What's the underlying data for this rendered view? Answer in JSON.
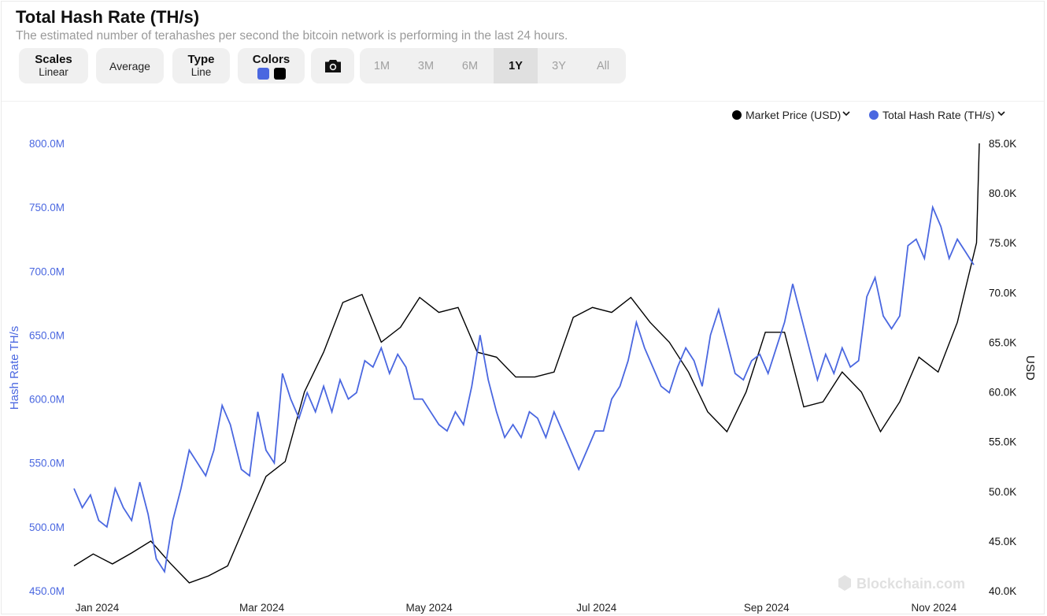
{
  "header": {
    "title": "Total Hash Rate (TH/s)",
    "subtitle": "The estimated number of terahashes per second the bitcoin network is performing in the last 24 hours."
  },
  "toolbar": {
    "scales_key": "Scales",
    "scales_value": "Linear",
    "average_label": "Average",
    "type_key": "Type",
    "type_value": "Line",
    "colors_key": "Colors",
    "color_swatches": [
      "#4a67e0",
      "#000000"
    ],
    "camera_icon": "camera-icon",
    "ranges": [
      "1M",
      "3M",
      "6M",
      "1Y",
      "3Y",
      "All"
    ],
    "active_range": "1Y"
  },
  "colors": {
    "hashrate": "#4a67e0",
    "price": "#000000",
    "accent_axis": "#4a67e0"
  },
  "watermark": "Blockchain.com",
  "chart_data": {
    "type": "line",
    "title": "Total Hash Rate (TH/s)",
    "x_tick_labels": [
      "Jan 2024",
      "Mar 2024",
      "May 2024",
      "Jul 2024",
      "Sep 2024",
      "Nov 2024"
    ],
    "xlim": [
      "2023-12-31",
      "2024-11-25"
    ],
    "y_left": {
      "label": "Hash Rate TH/s",
      "range": [
        450000000,
        800000000
      ],
      "tick_labels": [
        "450.0M",
        "500.0M",
        "550.0M",
        "600.0M",
        "650.0M",
        "700.0M",
        "750.0M",
        "800.0M"
      ]
    },
    "y_right": {
      "label": "USD",
      "range": [
        40000,
        85000
      ],
      "tick_labels": [
        "40.0K",
        "45.0K",
        "50.0K",
        "55.0K",
        "60.0K",
        "65.0K",
        "70.0K",
        "75.0K",
        "80.0K",
        "85.0K"
      ]
    },
    "legend": [
      "Market Price (USD)",
      "Total Hash Rate (TH/s)"
    ],
    "legend_position": "top-right",
    "series": [
      {
        "name": "Total Hash Rate (TH/s)",
        "axis": "left",
        "color": "#4a67e0",
        "points": [
          [
            "2023-12-31",
            530
          ],
          [
            "2024-01-03",
            515
          ],
          [
            "2024-01-06",
            525
          ],
          [
            "2024-01-09",
            505
          ],
          [
            "2024-01-12",
            500
          ],
          [
            "2024-01-15",
            530
          ],
          [
            "2024-01-18",
            515
          ],
          [
            "2024-01-21",
            505
          ],
          [
            "2024-01-24",
            535
          ],
          [
            "2024-01-27",
            510
          ],
          [
            "2024-01-30",
            475
          ],
          [
            "2024-02-02",
            465
          ],
          [
            "2024-02-05",
            505
          ],
          [
            "2024-02-08",
            530
          ],
          [
            "2024-02-11",
            560
          ],
          [
            "2024-02-14",
            550
          ],
          [
            "2024-02-17",
            540
          ],
          [
            "2024-02-20",
            560
          ],
          [
            "2024-02-23",
            595
          ],
          [
            "2024-02-26",
            580
          ],
          [
            "2024-03-01",
            545
          ],
          [
            "2024-03-04",
            540
          ],
          [
            "2024-03-07",
            590
          ],
          [
            "2024-03-10",
            560
          ],
          [
            "2024-03-13",
            550
          ],
          [
            "2024-03-16",
            620
          ],
          [
            "2024-03-19",
            600
          ],
          [
            "2024-03-22",
            585
          ],
          [
            "2024-03-25",
            605
          ],
          [
            "2024-03-28",
            590
          ],
          [
            "2024-03-31",
            610
          ],
          [
            "2024-04-03",
            590
          ],
          [
            "2024-04-06",
            615
          ],
          [
            "2024-04-09",
            600
          ],
          [
            "2024-04-12",
            605
          ],
          [
            "2024-04-15",
            630
          ],
          [
            "2024-04-18",
            625
          ],
          [
            "2024-04-21",
            640
          ],
          [
            "2024-04-24",
            620
          ],
          [
            "2024-04-27",
            635
          ],
          [
            "2024-04-30",
            625
          ],
          [
            "2024-05-03",
            600
          ],
          [
            "2024-05-06",
            600
          ],
          [
            "2024-05-09",
            590
          ],
          [
            "2024-05-12",
            580
          ],
          [
            "2024-05-15",
            575
          ],
          [
            "2024-05-18",
            590
          ],
          [
            "2024-05-21",
            580
          ],
          [
            "2024-05-24",
            610
          ],
          [
            "2024-05-27",
            650
          ],
          [
            "2024-05-30",
            615
          ],
          [
            "2024-06-02",
            590
          ],
          [
            "2024-06-05",
            570
          ],
          [
            "2024-06-08",
            580
          ],
          [
            "2024-06-11",
            570
          ],
          [
            "2024-06-14",
            590
          ],
          [
            "2024-06-17",
            585
          ],
          [
            "2024-06-20",
            570
          ],
          [
            "2024-06-23",
            590
          ],
          [
            "2024-06-26",
            575
          ],
          [
            "2024-06-29",
            560
          ],
          [
            "2024-07-02",
            545
          ],
          [
            "2024-07-05",
            560
          ],
          [
            "2024-07-08",
            575
          ],
          [
            "2024-07-11",
            575
          ],
          [
            "2024-07-14",
            600
          ],
          [
            "2024-07-17",
            610
          ],
          [
            "2024-07-20",
            630
          ],
          [
            "2024-07-23",
            660
          ],
          [
            "2024-07-26",
            640
          ],
          [
            "2024-07-29",
            625
          ],
          [
            "2024-08-01",
            610
          ],
          [
            "2024-08-04",
            605
          ],
          [
            "2024-08-07",
            625
          ],
          [
            "2024-08-10",
            640
          ],
          [
            "2024-08-13",
            630
          ],
          [
            "2024-08-16",
            610
          ],
          [
            "2024-08-19",
            650
          ],
          [
            "2024-08-22",
            670
          ],
          [
            "2024-08-25",
            645
          ],
          [
            "2024-08-28",
            620
          ],
          [
            "2024-08-31",
            615
          ],
          [
            "2024-09-03",
            630
          ],
          [
            "2024-09-06",
            635
          ],
          [
            "2024-09-09",
            620
          ],
          [
            "2024-09-12",
            640
          ],
          [
            "2024-09-15",
            660
          ],
          [
            "2024-09-18",
            690
          ],
          [
            "2024-09-21",
            665
          ],
          [
            "2024-09-24",
            640
          ],
          [
            "2024-09-27",
            615
          ],
          [
            "2024-09-30",
            635
          ],
          [
            "2024-10-03",
            620
          ],
          [
            "2024-10-06",
            640
          ],
          [
            "2024-10-09",
            625
          ],
          [
            "2024-10-12",
            630
          ],
          [
            "2024-10-15",
            680
          ],
          [
            "2024-10-18",
            695
          ],
          [
            "2024-10-21",
            665
          ],
          [
            "2024-10-24",
            655
          ],
          [
            "2024-10-27",
            665
          ],
          [
            "2024-10-30",
            720
          ],
          [
            "2024-11-02",
            725
          ],
          [
            "2024-11-05",
            710
          ],
          [
            "2024-11-08",
            750
          ],
          [
            "2024-11-11",
            735
          ],
          [
            "2024-11-14",
            710
          ],
          [
            "2024-11-17",
            725
          ],
          [
            "2024-11-20",
            715
          ],
          [
            "2024-11-23",
            705
          ]
        ]
      },
      {
        "name": "Market Price (USD)",
        "axis": "right",
        "color": "#000000",
        "points": [
          [
            "2023-12-31",
            42.5
          ],
          [
            "2024-01-07",
            43.7
          ],
          [
            "2024-01-14",
            42.7
          ],
          [
            "2024-01-21",
            43.8
          ],
          [
            "2024-01-28",
            45.0
          ],
          [
            "2024-02-04",
            42.8
          ],
          [
            "2024-02-11",
            40.8
          ],
          [
            "2024-02-18",
            41.5
          ],
          [
            "2024-02-25",
            42.5
          ],
          [
            "2024-03-03",
            47.0
          ],
          [
            "2024-03-10",
            51.5
          ],
          [
            "2024-03-17",
            53.0
          ],
          [
            "2024-03-24",
            60.0
          ],
          [
            "2024-03-31",
            64.0
          ],
          [
            "2024-04-07",
            69.0
          ],
          [
            "2024-04-14",
            69.8
          ],
          [
            "2024-04-21",
            65.0
          ],
          [
            "2024-04-28",
            66.5
          ],
          [
            "2024-05-05",
            69.5
          ],
          [
            "2024-05-12",
            68.0
          ],
          [
            "2024-05-19",
            68.5
          ],
          [
            "2024-05-26",
            64.0
          ],
          [
            "2024-06-02",
            63.5
          ],
          [
            "2024-06-09",
            61.5
          ],
          [
            "2024-06-16",
            61.5
          ],
          [
            "2024-06-23",
            62.0
          ],
          [
            "2024-06-30",
            67.5
          ],
          [
            "2024-07-07",
            68.5
          ],
          [
            "2024-07-14",
            68.0
          ],
          [
            "2024-07-21",
            69.5
          ],
          [
            "2024-07-28",
            67.0
          ],
          [
            "2024-08-04",
            65.0
          ],
          [
            "2024-08-11",
            62.0
          ],
          [
            "2024-08-18",
            58.0
          ],
          [
            "2024-08-25",
            56.0
          ],
          [
            "2024-09-01",
            60.0
          ],
          [
            "2024-09-08",
            66.0
          ],
          [
            "2024-09-15",
            66.0
          ],
          [
            "2024-09-22",
            58.5
          ],
          [
            "2024-09-29",
            59.0
          ],
          [
            "2024-10-06",
            62.0
          ],
          [
            "2024-10-13",
            60.0
          ],
          [
            "2024-10-20",
            56.0
          ],
          [
            "2024-10-27",
            59.0
          ],
          [
            "2024-11-03",
            63.5
          ],
          [
            "2024-11-10",
            62.0
          ],
          [
            "2024-11-17",
            67.0
          ],
          [
            "2024-11-24",
            75.0
          ],
          [
            "2024-11-25",
            85.0
          ]
        ]
      }
    ]
  }
}
